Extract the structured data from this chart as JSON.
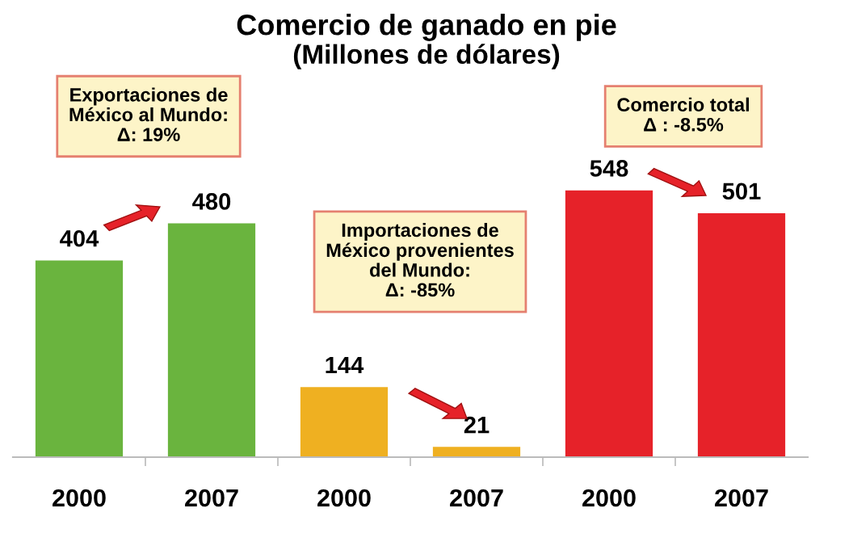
{
  "chart_data": {
    "type": "bar",
    "title": "Comercio de ganado en pie",
    "subtitle": "(Millones de dólares)",
    "categories": [
      "2000",
      "2007",
      "2000",
      "2007",
      "2000",
      "2007"
    ],
    "values": [
      404,
      480,
      144,
      21,
      548,
      501
    ],
    "colors": [
      "#6ab43e",
      "#6ab43e",
      "#efb021",
      "#efb021",
      "#e62229",
      "#e62229"
    ],
    "data_labels": true,
    "annotations": [
      "Exportaciones de\nMéxico al Mundo:\nΔ: 19%",
      "Importaciones de\nMéxico provenientes\ndel Mundo:\nΔ: -85%",
      "Comercio total\nΔ : -8.5%"
    ],
    "grid": false,
    "legend": false
  }
}
